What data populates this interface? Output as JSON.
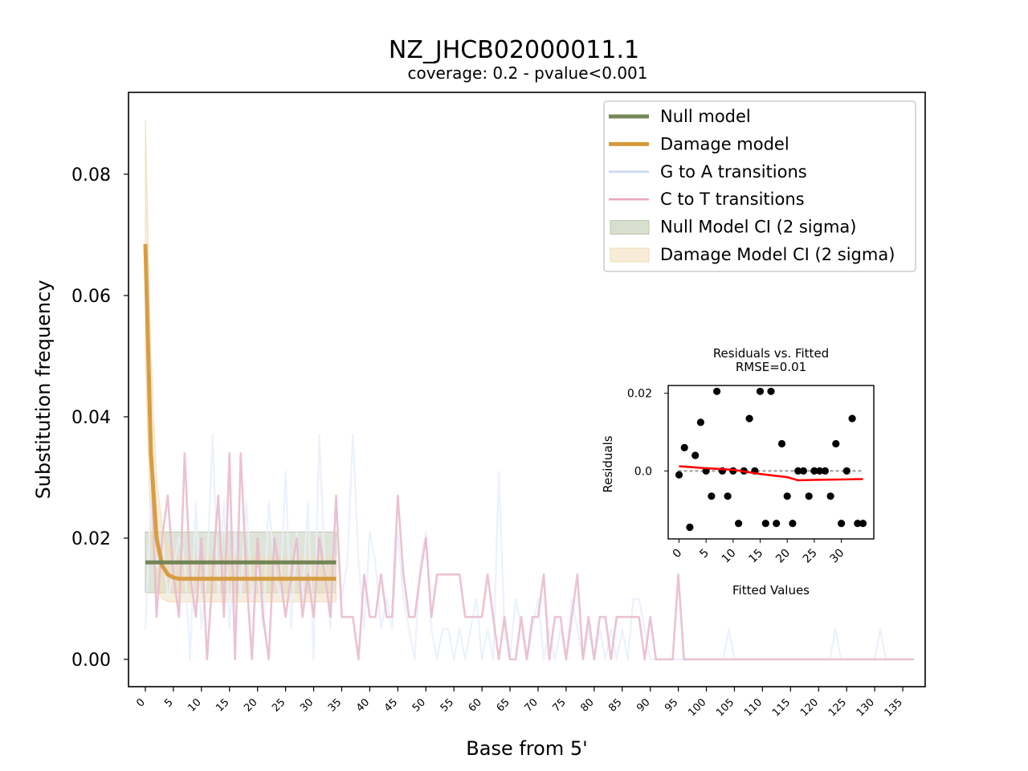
{
  "chart_data": [
    {
      "type": "line",
      "title": "NZ_JHCB02000011.1",
      "subtitle": "coverage: 0.2 - pvalue<0.001",
      "xlabel": "Base from 5'",
      "ylabel": "Substitution frequency",
      "xlim": [
        -3,
        139
      ],
      "ylim": [
        -0.0045,
        0.0935
      ],
      "xticks": [
        0,
        5,
        10,
        15,
        20,
        25,
        30,
        35,
        40,
        45,
        50,
        55,
        60,
        65,
        70,
        75,
        80,
        85,
        90,
        95,
        100,
        105,
        110,
        115,
        120,
        125,
        130,
        135
      ],
      "yticks": [
        "0.00",
        "0.02",
        "0.04",
        "0.06",
        "0.08"
      ],
      "ytick_values": [
        0,
        0.02,
        0.04,
        0.06,
        0.08
      ],
      "legend_position": "top-right",
      "legend": [
        {
          "label": "Null model",
          "color": "#77885a",
          "kind": "thick-line"
        },
        {
          "label": "Damage model",
          "color": "#d69a3a",
          "kind": "thick-line"
        },
        {
          "label": "G to A transitions",
          "color": "#c9d8f5",
          "kind": "line"
        },
        {
          "label": "C to T transitions",
          "color": "#e8a8be",
          "kind": "line"
        },
        {
          "label": "Null Model CI (2 sigma)",
          "color": "#b8c4a8",
          "kind": "patch"
        },
        {
          "label": "Damage Model CI (2 sigma)",
          "color": "#f1dcb6",
          "kind": "patch"
        }
      ],
      "series": [
        {
          "color": "#e8f0fc",
          "x": [
            0,
            1,
            2,
            3,
            4,
            5,
            6,
            7,
            8,
            9,
            10,
            11,
            12,
            13,
            14,
            15,
            16,
            17,
            18,
            19,
            20,
            21,
            22,
            23,
            24,
            25,
            26,
            27,
            28,
            29,
            30,
            31,
            32,
            33,
            34,
            35,
            36,
            37,
            38,
            39,
            40,
            41,
            42,
            43,
            44,
            45,
            46,
            47,
            48,
            49,
            50,
            51,
            52,
            53,
            54,
            55,
            56,
            57,
            58,
            59,
            60,
            61,
            62,
            63,
            64,
            65,
            66,
            67,
            68,
            69,
            70,
            71,
            72,
            73,
            74,
            75,
            76,
            77,
            78,
            79,
            80,
            81,
            82,
            83,
            84,
            85,
            86,
            87,
            88,
            89,
            90,
            91,
            92,
            93,
            94,
            95,
            96,
            97,
            98,
            99,
            100,
            101,
            102,
            103,
            104,
            105,
            106,
            107,
            108,
            109,
            110,
            111,
            112,
            113,
            114,
            115,
            116,
            117,
            118,
            119,
            120,
            121,
            122,
            123,
            124,
            125,
            126,
            127,
            128,
            129,
            130,
            131,
            132,
            133,
            134,
            135,
            136,
            137
          ],
          "values": [
            0.005,
            0.026,
            0.015,
            0.021,
            0.01,
            0.015,
            0.02,
            0.016,
            0.0,
            0.026,
            0.005,
            0.015,
            0.037,
            0.01,
            0.026,
            0.005,
            0.021,
            0.01,
            0.026,
            0.01,
            0.015,
            0.005,
            0.026,
            0.015,
            0.01,
            0.031,
            0.005,
            0.021,
            0.01,
            0.026,
            0.0,
            0.037,
            0.015,
            0.005,
            0.026,
            0.01,
            0.016,
            0.037,
            0.016,
            0.005,
            0.021,
            0.016,
            0.005,
            0.01,
            0.005,
            0.021,
            0.01,
            0.005,
            0.0,
            0.016,
            0.021,
            0.005,
            0.0,
            0.005,
            0.005,
            0.0,
            0.005,
            0.0,
            0.005,
            0.01,
            0.0,
            0.005,
            0.0,
            0.031,
            0.005,
            0.0,
            0.01,
            0.005,
            0.0,
            0.005,
            0.01,
            0.0,
            0.005,
            0.0,
            0.005,
            0.0,
            0.01,
            0.005,
            0.0,
            0.005,
            0.0,
            0.005,
            0.0,
            0.005,
            0.0,
            0.005,
            0.0,
            0.01,
            0.01,
            0.005,
            0.0,
            0.0,
            0.0,
            0.0,
            0.0,
            0.0,
            0.0,
            0.0,
            0.0,
            0.0,
            0.0,
            0.0,
            0.0,
            0.0,
            0.005,
            0.0,
            0.0,
            0.0,
            0.0,
            0.0,
            0.0,
            0.0,
            0.0,
            0.0,
            0.0,
            0.0,
            0.0,
            0.0,
            0.0,
            0.0,
            0.0,
            0.0,
            0.0,
            0.005,
            0.0,
            0.0,
            0.0,
            0.0,
            0.0,
            0.0,
            0.0,
            0.005,
            0.0,
            0.0,
            0.0,
            0.0,
            0.0,
            0.0
          ]
        },
        {
          "color": "#e8b8ca",
          "x": [
            0,
            1,
            2,
            3,
            4,
            5,
            6,
            7,
            8,
            9,
            10,
            11,
            12,
            13,
            14,
            15,
            16,
            17,
            18,
            19,
            20,
            21,
            22,
            23,
            24,
            25,
            26,
            27,
            28,
            29,
            30,
            31,
            32,
            33,
            34,
            35,
            36,
            37,
            38,
            39,
            40,
            41,
            42,
            43,
            44,
            45,
            46,
            47,
            48,
            49,
            50,
            51,
            52,
            53,
            54,
            55,
            56,
            57,
            58,
            59,
            60,
            61,
            62,
            63,
            64,
            65,
            66,
            67,
            68,
            69,
            70,
            71,
            72,
            73,
            74,
            75,
            76,
            77,
            78,
            79,
            80,
            81,
            82,
            83,
            84,
            85,
            86,
            87,
            88,
            89,
            90,
            91,
            92,
            93,
            94,
            95,
            96,
            97,
            98,
            99,
            100,
            101,
            102,
            103,
            104,
            105,
            106,
            107,
            108,
            109,
            110,
            111,
            112,
            113,
            114,
            115,
            116,
            117,
            118,
            119,
            120,
            121,
            122,
            123,
            124,
            125,
            126,
            127,
            128,
            129,
            130,
            131,
            132,
            133,
            134,
            135,
            136,
            137
          ],
          "values": [
            0.068,
            0.034,
            0.007,
            0.02,
            0.027,
            0.014,
            0.007,
            0.034,
            0.014,
            0.007,
            0.02,
            0.0,
            0.014,
            0.027,
            0.007,
            0.034,
            0.0,
            0.034,
            0.014,
            0.0,
            0.02,
            0.007,
            0.0,
            0.02,
            0.014,
            0.007,
            0.014,
            0.02,
            0.007,
            0.014,
            0.007,
            0.02,
            0.014,
            0.007,
            0.027,
            0.007,
            0.007,
            0.007,
            0.0,
            0.014,
            0.007,
            0.007,
            0.014,
            0.007,
            0.007,
            0.027,
            0.014,
            0.007,
            0.007,
            0.014,
            0.02,
            0.007,
            0.014,
            0.014,
            0.014,
            0.014,
            0.014,
            0.007,
            0.007,
            0.007,
            0.007,
            0.014,
            0.007,
            0.0,
            0.007,
            0.0,
            0.0,
            0.007,
            0.0,
            0.007,
            0.007,
            0.014,
            0.0,
            0.007,
            0.007,
            0.0,
            0.007,
            0.014,
            0.0,
            0.007,
            0.0,
            0.007,
            0.007,
            0.0,
            0.007,
            0.007,
            0.007,
            0.007,
            0.007,
            0.0,
            0.007,
            0.0,
            0.0,
            0.0,
            0.0,
            0.014,
            0.0,
            0.0,
            0.0,
            0.0,
            0.0,
            0.0,
            0.0,
            0.0,
            0.0,
            0.0,
            0.0,
            0.0,
            0.0,
            0.0,
            0.0,
            0.0,
            0.0,
            0.0,
            0.0,
            0.0,
            0.0,
            0.0,
            0.0,
            0.0,
            0.0,
            0.0,
            0.0,
            0.0,
            0.0,
            0.0,
            0.0,
            0.0,
            0.0,
            0.0,
            0.0,
            0.0,
            0.0,
            0.0,
            0.0,
            0.0,
            0.0,
            0.0
          ]
        },
        {
          "color": "#d69a3a",
          "x": [
            0,
            1,
            2,
            3,
            4,
            5,
            6,
            7,
            8,
            9,
            10,
            11,
            12,
            13,
            14,
            15,
            16,
            17,
            18,
            19,
            20,
            21,
            22,
            23,
            24,
            25,
            26,
            27,
            28,
            29,
            30,
            31,
            32,
            33,
            34
          ],
          "values": [
            0.0685,
            0.034,
            0.02,
            0.0155,
            0.014,
            0.0135,
            0.0133,
            0.0133,
            0.0133,
            0.0133,
            0.0133,
            0.0133,
            0.0133,
            0.0133,
            0.0133,
            0.0133,
            0.0133,
            0.0133,
            0.0133,
            0.0133,
            0.0133,
            0.0133,
            0.0133,
            0.0133,
            0.0133,
            0.0133,
            0.0133,
            0.0133,
            0.0133,
            0.0133,
            0.0133,
            0.0133,
            0.0133,
            0.0133,
            0.0133
          ]
        },
        {
          "color": "#6f8050",
          "x": [
            0,
            34
          ],
          "values": [
            0.016,
            0.016
          ]
        }
      ],
      "bands": [
        {
          "color": "#b8c4a8",
          "x": [
            0,
            34
          ],
          "low": [
            0.011,
            0.011
          ],
          "high": [
            0.021,
            0.021
          ]
        },
        {
          "color": "#f1dcb6",
          "x": [
            0,
            1,
            2,
            3,
            4,
            5,
            6,
            7,
            8,
            9,
            10,
            11,
            12,
            13,
            14,
            15,
            16,
            17,
            18,
            19,
            20,
            21,
            22,
            23,
            24,
            25,
            26,
            27,
            28,
            29,
            30,
            31,
            32,
            33,
            34
          ],
          "low": [
            0.05,
            0.02,
            0.012,
            0.01,
            0.0095,
            0.0095,
            0.0095,
            0.0095,
            0.0095,
            0.0095,
            0.0095,
            0.0095,
            0.0095,
            0.0095,
            0.0095,
            0.0095,
            0.0095,
            0.0095,
            0.0095,
            0.0095,
            0.0095,
            0.0095,
            0.0095,
            0.0095,
            0.0095,
            0.0095,
            0.0095,
            0.0095,
            0.0095,
            0.0095,
            0.0095,
            0.0095,
            0.0095,
            0.0095,
            0.0095
          ],
          "high": [
            0.089,
            0.05,
            0.03,
            0.022,
            0.019,
            0.018,
            0.017,
            0.017,
            0.017,
            0.017,
            0.017,
            0.017,
            0.017,
            0.017,
            0.017,
            0.017,
            0.017,
            0.017,
            0.017,
            0.017,
            0.017,
            0.017,
            0.017,
            0.017,
            0.017,
            0.017,
            0.017,
            0.017,
            0.017,
            0.017,
            0.017,
            0.017,
            0.017,
            0.017,
            0.017
          ]
        }
      ]
    },
    {
      "type": "scatter",
      "title": "Residuals vs. Fitted",
      "subtitle": "RMSE=0.01",
      "xlabel": "Fitted Values",
      "ylabel": "Residuals",
      "xlim": [
        -2,
        36
      ],
      "ylim": [
        -0.0175,
        0.022
      ],
      "xticks": [
        0,
        5,
        10,
        15,
        20,
        25,
        30
      ],
      "yticks": [
        "0.0",
        "0.02"
      ],
      "ytick_values": [
        0,
        0.02
      ],
      "points": {
        "x": [
          0,
          1,
          2,
          3,
          4,
          5,
          6,
          7,
          8,
          9,
          10,
          11,
          12,
          13,
          14,
          15,
          16,
          17,
          18,
          19,
          20,
          21,
          22,
          23,
          24,
          25,
          26,
          27,
          28,
          29,
          30,
          31,
          32,
          33,
          34
        ],
        "y": [
          -0.001,
          0.006,
          -0.0145,
          0.004,
          0.0125,
          0.0,
          -0.0065,
          0.0205,
          0.0,
          -0.0065,
          0.0,
          -0.0135,
          0.0,
          0.0135,
          0.0,
          0.0205,
          -0.0135,
          0.0205,
          -0.0135,
          0.007,
          -0.0065,
          -0.0135,
          0.0,
          0.0,
          -0.0065,
          0.0,
          0.0,
          0.0,
          -0.0065,
          0.007,
          -0.0135,
          0.0,
          0.0135,
          -0.0135,
          -0.0135
        ]
      },
      "trend": {
        "color": "#ff0000",
        "x": [
          0,
          5,
          10,
          15,
          20,
          22,
          25,
          30,
          34
        ],
        "y": [
          0.0012,
          0.0007,
          0.0003,
          -0.0008,
          -0.0016,
          -0.0024,
          -0.0023,
          -0.0022,
          -0.0021
        ]
      }
    }
  ]
}
